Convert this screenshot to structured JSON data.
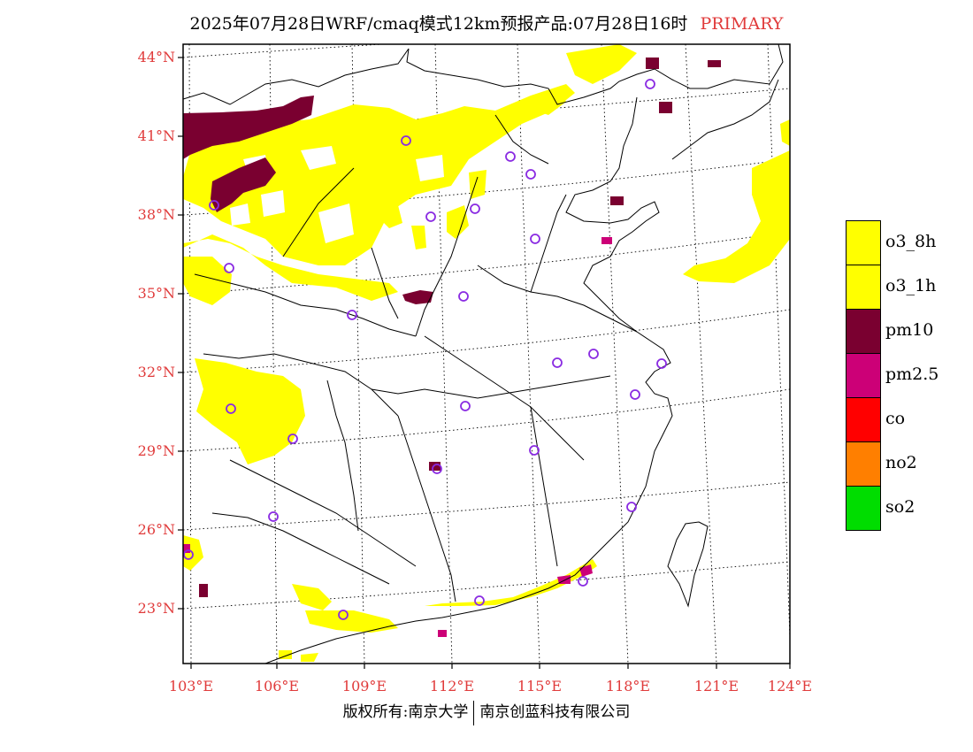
{
  "title": {
    "main": "2025年07月28日WRF/cmaq模式12km预报产品:07月28日16时",
    "tag": "PRIMARY"
  },
  "lat_labels": [
    "44°N",
    "41°N",
    "38°N",
    "35°N",
    "32°N",
    "29°N",
    "26°N",
    "23°N"
  ],
  "lon_labels": [
    "103°E",
    "106°E",
    "109°E",
    "112°E",
    "115°E",
    "118°E",
    "121°E",
    "124°E"
  ],
  "legend": [
    {
      "label": "o3_8h",
      "color": "#ffff00"
    },
    {
      "label": "o3_1h",
      "color": "#ffff00"
    },
    {
      "label": "pm10",
      "color": "#7a0030"
    },
    {
      "label": "pm2.5",
      "color": "#cc0077"
    },
    {
      "label": "co",
      "color": "#ff0000"
    },
    {
      "label": "no2",
      "color": "#ff7f00"
    },
    {
      "label": "so2",
      "color": "#00dd00"
    }
  ],
  "footer": {
    "left": "版权所有:南京大学",
    "right": "南京创蓝科技有限公司"
  },
  "colors": {
    "o3": "#ffff00",
    "pm10": "#7a0030",
    "pm25": "#cc0077",
    "city_marker": "#8a2be2",
    "axis_label": "#e03b3b"
  }
}
